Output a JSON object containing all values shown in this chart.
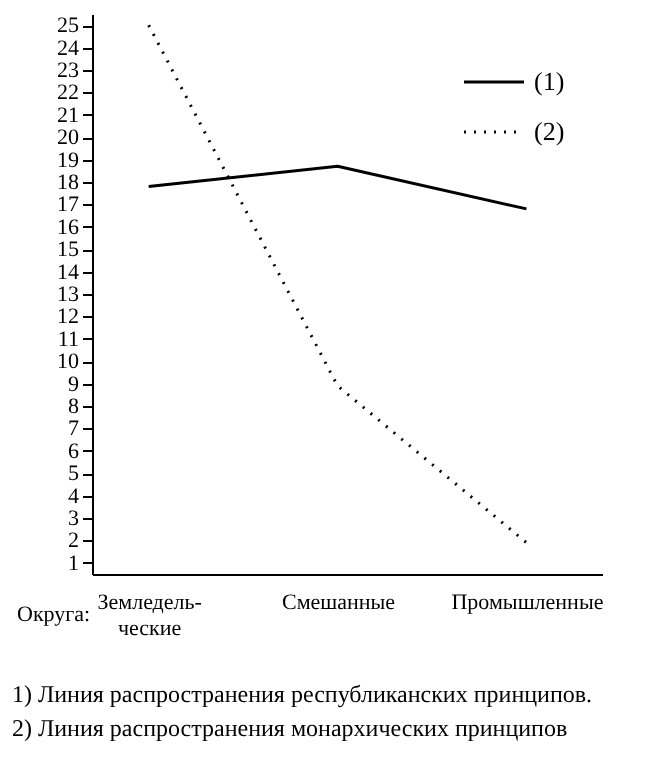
{
  "chart_data": {
    "type": "line",
    "xlabel": "Округа:",
    "categories": [
      "Земледель-\nческие",
      "Смешанные",
      "Промышленные"
    ],
    "series": [
      {
        "name": "(1)",
        "color": "#000000",
        "line_style": "solid",
        "values": [
          17.8,
          18.7,
          16.8
        ]
      },
      {
        "name": "(2)",
        "color": "#000000",
        "line_style": "dotted",
        "values": [
          25,
          8.9,
          1.9
        ]
      }
    ],
    "ylim": [
      0.5,
      25.5
    ],
    "yticks": [
      1,
      2,
      3,
      4,
      5,
      6,
      7,
      8,
      9,
      10,
      11,
      12,
      13,
      14,
      15,
      16,
      17,
      18,
      19,
      20,
      21,
      22,
      23,
      24,
      25
    ],
    "grid": false,
    "legend": "top right",
    "marker": "none",
    "annotations": [
      "1) Линия распространения республиканских принципов.",
      "2) Линия распространения монархических принципов"
    ]
  }
}
